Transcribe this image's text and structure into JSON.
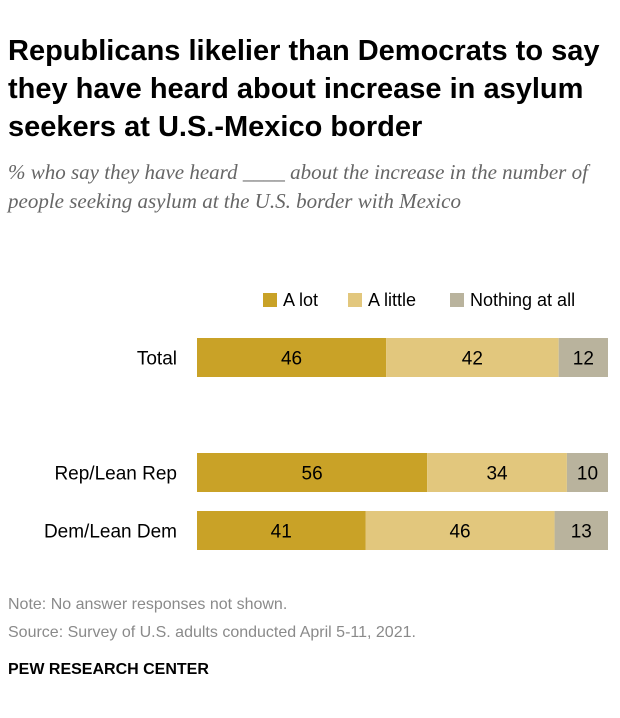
{
  "title": "Republicans likelier than Democrats to say they have heard about increase in asylum seekers at U.S.-Mexico border",
  "subtitle": "% who say they have heard ____ about the increase in the number of people seeking asylum at the U.S. border with Mexico",
  "note": "Note: No answer responses not shown.",
  "source": "Source: Survey of U.S. adults conducted April 5-11, 2021.",
  "brand": "PEW RESEARCH CENTER",
  "chart_data": {
    "type": "bar",
    "orientation": "horizontal",
    "stacked": true,
    "categories": [
      "Total",
      "Rep/Lean Rep",
      "Dem/Lean Dem"
    ],
    "series": [
      {
        "name": "A lot",
        "values": [
          46,
          56,
          41
        ],
        "color": "#c9a227"
      },
      {
        "name": "A little",
        "values": [
          42,
          34,
          46
        ],
        "color": "#e2c77d"
      },
      {
        "name": "Nothing at all",
        "values": [
          12,
          10,
          13
        ],
        "color": "#b9b39d"
      }
    ],
    "xlim": [
      0,
      100
    ],
    "grid": false,
    "legend": "top-right",
    "data_labels": true
  }
}
